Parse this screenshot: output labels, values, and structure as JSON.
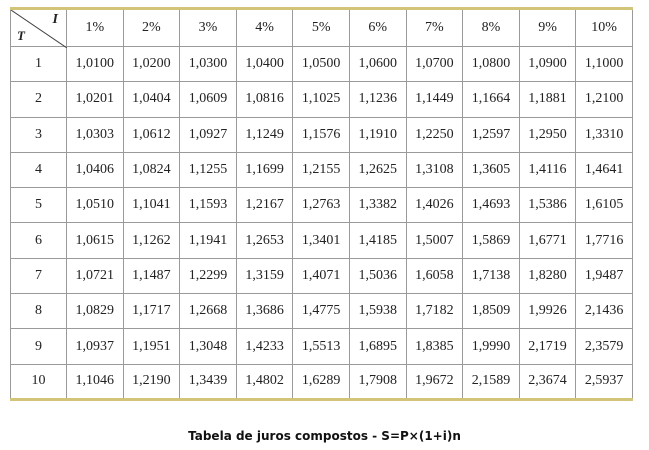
{
  "table": {
    "corner": {
      "column_label": "I",
      "row_label": "T"
    },
    "columns": [
      "1%",
      "2%",
      "3%",
      "4%",
      "5%",
      "6%",
      "7%",
      "8%",
      "9%",
      "10%"
    ],
    "rows": [
      {
        "label": "1",
        "values": [
          "1,0100",
          "1,0200",
          "1,0300",
          "1,0400",
          "1,0500",
          "1,0600",
          "1,0700",
          "1,0800",
          "1,0900",
          "1,1000"
        ]
      },
      {
        "label": "2",
        "values": [
          "1,0201",
          "1,0404",
          "1,0609",
          "1,0816",
          "1,1025",
          "1,1236",
          "1,1449",
          "1,1664",
          "1,1881",
          "1,2100"
        ]
      },
      {
        "label": "3",
        "values": [
          "1,0303",
          "1,0612",
          "1,0927",
          "1,1249",
          "1,1576",
          "1,1910",
          "1,2250",
          "1,2597",
          "1,2950",
          "1,3310"
        ]
      },
      {
        "label": "4",
        "values": [
          "1,0406",
          "1,0824",
          "1,1255",
          "1,1699",
          "1,2155",
          "1,2625",
          "1,3108",
          "1,3605",
          "1,4116",
          "1,4641"
        ]
      },
      {
        "label": "5",
        "values": [
          "1,0510",
          "1,1041",
          "1,1593",
          "1,2167",
          "1,2763",
          "1,3382",
          "1,4026",
          "1,4693",
          "1,5386",
          "1,6105"
        ]
      },
      {
        "label": "6",
        "values": [
          "1,0615",
          "1,1262",
          "1,1941",
          "1,2653",
          "1,3401",
          "1,4185",
          "1,5007",
          "1,5869",
          "1,6771",
          "1,7716"
        ]
      },
      {
        "label": "7",
        "values": [
          "1,0721",
          "1,1487",
          "1,2299",
          "1,3159",
          "1,4071",
          "1,5036",
          "1,6058",
          "1,7138",
          "1,8280",
          "1,9487"
        ]
      },
      {
        "label": "8",
        "values": [
          "1,0829",
          "1,1717",
          "1,2668",
          "1,3686",
          "1,4775",
          "1,5938",
          "1,7182",
          "1,8509",
          "1,9926",
          "2,1436"
        ]
      },
      {
        "label": "9",
        "values": [
          "1,0937",
          "1,1951",
          "1,3048",
          "1,4233",
          "1,5513",
          "1,6895",
          "1,8385",
          "1,9990",
          "2,1719",
          "2,3579"
        ]
      },
      {
        "label": "10",
        "values": [
          "1,1046",
          "1,2190",
          "1,3439",
          "1,4802",
          "1,6289",
          "1,7908",
          "1,9672",
          "2,1589",
          "2,3674",
          "2,5937"
        ]
      }
    ]
  },
  "caption": "Tabela de juros compostos - S=P×(1+i)n"
}
